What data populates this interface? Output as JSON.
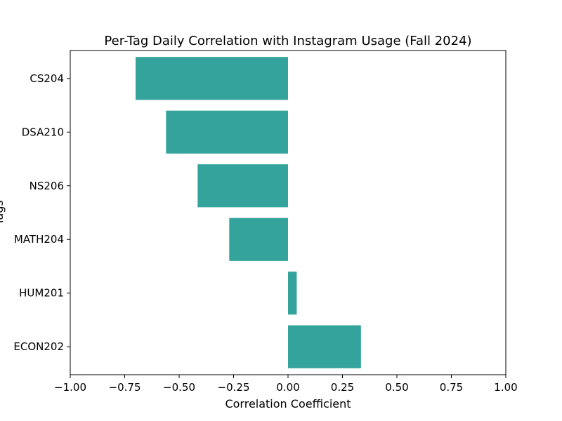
{
  "chart_data": {
    "type": "bar",
    "orientation": "horizontal",
    "title": "Per-Tag Daily Correlation with Instagram Usage (Fall 2024)",
    "xlabel": "Correlation Coefficient",
    "ylabel": "Tags",
    "xlim": [
      -1.0,
      1.0
    ],
    "xticks": [
      -1.0,
      -0.75,
      -0.5,
      -0.25,
      0.0,
      0.25,
      0.5,
      0.75,
      1.0
    ],
    "xtick_labels": [
      "−1.00",
      "−0.75",
      "−0.50",
      "−0.25",
      "0.00",
      "0.25",
      "0.50",
      "0.75",
      "1.00"
    ],
    "categories": [
      "CS204",
      "DSA210",
      "NS206",
      "MATH204",
      "HUM201",
      "ECON202"
    ],
    "values": [
      -0.7,
      -0.56,
      -0.415,
      -0.27,
      0.04,
      0.335
    ],
    "bar_color": "#33a39b",
    "grid": false,
    "legend": "none"
  }
}
